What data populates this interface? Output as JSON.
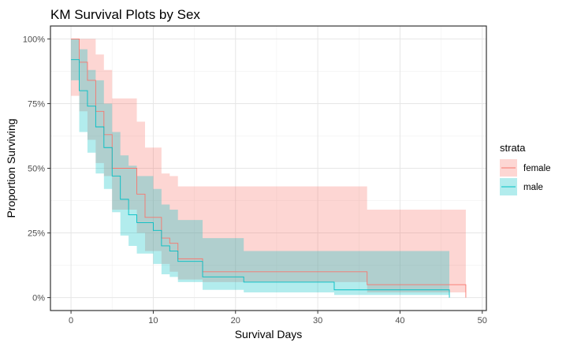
{
  "chart_data": {
    "type": "line",
    "subtype": "kaplan-meier-step",
    "title": "KM Survival Plots by Sex",
    "xlabel": "Survival Days",
    "ylabel": "Proportion Surviving",
    "xlim": [
      -2.5,
      50.5
    ],
    "ylim": [
      -0.05,
      1.05
    ],
    "x_ticks": [
      0,
      10,
      20,
      30,
      40,
      50
    ],
    "x_tick_labels": [
      "0",
      "10",
      "20",
      "30",
      "40",
      "50"
    ],
    "y_ticks": [
      0,
      0.25,
      0.5,
      0.75,
      1.0
    ],
    "y_tick_labels": [
      "0%",
      "25%",
      "50%",
      "75%",
      "100%"
    ],
    "grid": true,
    "legend": {
      "title": "strata",
      "position": "right"
    },
    "series": [
      {
        "name": "female",
        "color": "#F8766D",
        "fill": "#F8766D",
        "fill_opacity": 0.3,
        "x": [
          0,
          1,
          2,
          3,
          4,
          5,
          8,
          9,
          11,
          12,
          13,
          16,
          36,
          48
        ],
        "y": [
          1.0,
          0.91,
          0.84,
          0.72,
          0.63,
          0.5,
          0.4,
          0.31,
          0.23,
          0.21,
          0.15,
          0.1,
          0.05,
          0.0
        ],
        "lower": [
          0.78,
          0.72,
          0.61,
          0.52,
          0.47,
          0.34,
          0.25,
          0.18,
          0.13,
          0.1,
          0.07,
          0.06,
          0.02,
          0.0
        ],
        "upper": [
          1.0,
          1.0,
          1.0,
          0.94,
          0.88,
          0.77,
          0.68,
          0.58,
          0.48,
          0.47,
          0.43,
          0.43,
          0.34,
          0.34
        ]
      },
      {
        "name": "male",
        "color": "#00BFC4",
        "fill": "#00BFC4",
        "fill_opacity": 0.3,
        "x": [
          0,
          1,
          2,
          3,
          4,
          5,
          6,
          7,
          8,
          10,
          11,
          12,
          13,
          16,
          21,
          32,
          46
        ],
        "y": [
          0.92,
          0.8,
          0.74,
          0.66,
          0.58,
          0.47,
          0.38,
          0.32,
          0.29,
          0.26,
          0.2,
          0.18,
          0.14,
          0.08,
          0.06,
          0.03,
          0.0
        ],
        "lower": [
          0.84,
          0.64,
          0.56,
          0.48,
          0.42,
          0.33,
          0.24,
          0.2,
          0.17,
          0.13,
          0.09,
          0.08,
          0.06,
          0.03,
          0.02,
          0.01,
          0.0
        ],
        "upper": [
          1.0,
          0.96,
          0.88,
          0.84,
          0.75,
          0.64,
          0.55,
          0.51,
          0.47,
          0.42,
          0.36,
          0.34,
          0.3,
          0.23,
          0.18,
          0.18,
          0.18
        ]
      }
    ]
  }
}
